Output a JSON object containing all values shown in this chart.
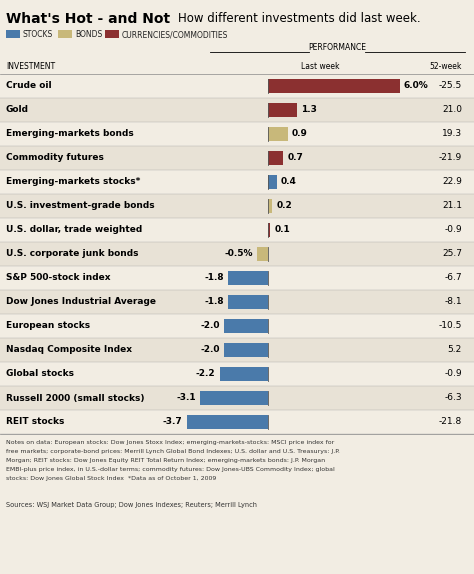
{
  "title_bold": "What's Hot - and Not",
  "title_regular": "How different investments did last week.",
  "legend": [
    {
      "label": "STOCKS",
      "color": "#4a7aaa"
    },
    {
      "label": "BONDS",
      "color": "#c8b87a"
    },
    {
      "label": "CURRENCIES/COMMODITIES",
      "color": "#8b3030"
    }
  ],
  "performance_label": "PERFORMANCE",
  "investments": [
    {
      "name": "Crude oil",
      "value": 6.0,
      "week52": -25.5,
      "type": "commodity"
    },
    {
      "name": "Gold",
      "value": 1.3,
      "week52": 21.0,
      "type": "commodity"
    },
    {
      "name": "Emerging-markets bonds",
      "value": 0.9,
      "week52": 19.3,
      "type": "bond"
    },
    {
      "name": "Commodity futures",
      "value": 0.7,
      "week52": -21.9,
      "type": "commodity"
    },
    {
      "name": "Emerging-markets stocks*",
      "value": 0.4,
      "week52": 22.9,
      "type": "stock"
    },
    {
      "name": "U.S. investment-grade bonds",
      "value": 0.2,
      "week52": 21.1,
      "type": "bond"
    },
    {
      "name": "U.S. dollar, trade weighted",
      "value": 0.1,
      "week52": -0.9,
      "type": "commodity"
    },
    {
      "name": "U.S. corporate junk bonds",
      "value": -0.5,
      "week52": 25.7,
      "type": "bond"
    },
    {
      "name": "S&P 500-stock index",
      "value": -1.8,
      "week52": -6.7,
      "type": "stock"
    },
    {
      "name": "Dow Jones Industrial Average",
      "value": -1.8,
      "week52": -8.1,
      "type": "stock"
    },
    {
      "name": "European stocks",
      "value": -2.0,
      "week52": -10.5,
      "type": "stock"
    },
    {
      "name": "Nasdaq Composite Index",
      "value": -2.0,
      "week52": 5.2,
      "type": "stock"
    },
    {
      "name": "Global stocks",
      "value": -2.2,
      "week52": -0.9,
      "type": "stock"
    },
    {
      "name": "Russell 2000 (small stocks)",
      "value": -3.1,
      "week52": -6.3,
      "type": "stock"
    },
    {
      "name": "REIT stocks",
      "value": -3.7,
      "week52": -21.8,
      "type": "stock"
    }
  ],
  "type_colors": {
    "stock": "#4a7aaa",
    "bond": "#c8b87a",
    "commodity": "#8b3030"
  },
  "notes": "Notes on data: European stocks: Dow Jones Stoxx Index; emerging-markets-stocks: MSCI price index for\nfree markets; corporate-bond prices: Merrill Lynch Global Bond Indexes; U.S. dollar and U.S. Treasurys: J.P.\nMorgan; REIT stocks: Dow Jones Equity REIT Total Return Index; emerging-markets bonds: J.P. Morgan\nEMBI-plus price index, in U.S.-dollar terms; commodity futures: Dow Jones-UBS Commodity Index; global\nstocks: Dow Jones Global Stock Index  *Data as of October 1, 2009",
  "sources": "Sources: WSJ Market Data Group; Dow Jones Indexes; Reuters; Merrill Lynch",
  "bg_color": "#f2ede3",
  "row_colors": [
    "#f2ede3",
    "#e8e2d6"
  ]
}
